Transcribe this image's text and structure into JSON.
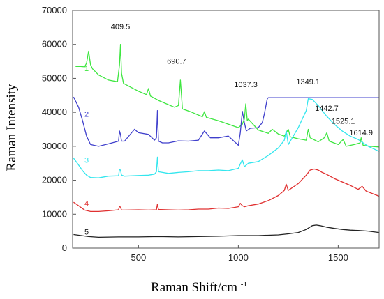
{
  "chart_data": {
    "type": "line",
    "title": "",
    "xlabel": "Raman Shift/cm",
    "xlabel_superscript": "-1",
    "ylabel": "Raman Intensity",
    "xlim": [
      170,
      1705
    ],
    "ylim": [
      0,
      70000
    ],
    "x_ticks": [
      500,
      1000,
      1500
    ],
    "y_ticks": [
      0,
      10000,
      20000,
      30000,
      40000,
      50000,
      60000,
      70000
    ],
    "x_tick_labels": [
      "500",
      "1000",
      "1500"
    ],
    "y_tick_labels": [
      "0",
      "10000",
      "20000",
      "30000",
      "40000",
      "50000",
      "60000",
      "70000"
    ],
    "grid": false,
    "peak_labels": [
      {
        "text": "409.5",
        "x": 409.5,
        "y": 64500
      },
      {
        "text": "690.7",
        "x": 690.7,
        "y": 54300
      },
      {
        "text": "1037.3",
        "x": 1037.3,
        "y": 47400
      },
      {
        "text": "1349.1",
        "x": 1349.1,
        "y": 48200
      },
      {
        "text": "1442.7",
        "x": 1442.7,
        "y": 40400
      },
      {
        "text": "1525.1",
        "x": 1525.1,
        "y": 36600
      },
      {
        "text": "1614.9",
        "x": 1614.9,
        "y": 33300
      }
    ],
    "series": [
      {
        "name": "1",
        "label_at": {
          "x": 240,
          "y": 53000
        },
        "color": "#3ee640",
        "x": [
          185,
          210,
          230,
          240,
          250,
          260,
          270,
          300,
          350,
          395,
          405,
          410,
          415,
          425,
          500,
          540,
          550,
          560,
          600,
          680,
          700,
          710,
          720,
          760,
          820,
          830,
          840,
          900,
          1000,
          1020,
          1030,
          1037,
          1045,
          1050,
          1100,
          1150,
          1170,
          1200,
          1230,
          1250,
          1260,
          1300,
          1340,
          1350,
          1360,
          1400,
          1430,
          1443,
          1455,
          1500,
          1525,
          1540,
          1580,
          1610,
          1615,
          1625,
          1660,
          1705
        ],
        "y": [
          53500,
          53500,
          53400,
          54500,
          58000,
          54000,
          52800,
          51000,
          49500,
          49000,
          54000,
          60000,
          51500,
          48500,
          46200,
          45200,
          47000,
          44800,
          43500,
          41500,
          42000,
          49500,
          41000,
          40200,
          38700,
          40200,
          38500,
          37500,
          35500,
          36500,
          38000,
          42500,
          37500,
          38000,
          34800,
          33800,
          35000,
          33600,
          33000,
          35000,
          32800,
          32200,
          31800,
          35000,
          32500,
          31300,
          32500,
          34000,
          31500,
          30500,
          32000,
          30000,
          30500,
          31000,
          32500,
          30300,
          30000,
          29800
        ]
      },
      {
        "name": "2",
        "label_at": {
          "x": 240,
          "y": 39500
        },
        "color": "#4040cc",
        "x": [
          175,
          200,
          220,
          240,
          260,
          300,
          350,
          400,
          405,
          410,
          415,
          430,
          480,
          500,
          550,
          580,
          590,
          595,
          600,
          620,
          650,
          700,
          750,
          800,
          830,
          860,
          900,
          950,
          1000,
          1010,
          1020,
          1030,
          1040,
          1060,
          1100,
          1120,
          1130,
          1140,
          1145,
          1150,
          1200,
          1300,
          1400,
          1500,
          1600,
          1705
        ],
        "y": [
          44500,
          41500,
          37500,
          33000,
          30500,
          30000,
          30700,
          31500,
          34500,
          33500,
          31500,
          31500,
          35000,
          34000,
          33500,
          31800,
          32500,
          40500,
          31500,
          31000,
          31000,
          31600,
          31500,
          31800,
          34500,
          32500,
          32500,
          33000,
          30300,
          34000,
          40300,
          37000,
          34500,
          35300,
          35500,
          37000,
          39500,
          42500,
          44000,
          44300,
          44300,
          44300,
          44300,
          44300,
          44300,
          44300
        ]
      },
      {
        "name": "3",
        "label_at": {
          "x": 240,
          "y": 26000
        },
        "color": "#33e6ee",
        "x": [
          175,
          200,
          220,
          240,
          260,
          300,
          350,
          400,
          405,
          410,
          415,
          430,
          500,
          550,
          580,
          590,
          595,
          600,
          650,
          700,
          750,
          800,
          850,
          900,
          950,
          1000,
          1010,
          1020,
          1030,
          1050,
          1100,
          1150,
          1200,
          1230,
          1240,
          1250,
          1300,
          1340,
          1350,
          1370,
          1400,
          1440,
          1480,
          1520,
          1560,
          1600,
          1650,
          1705
        ],
        "y": [
          26500,
          24500,
          22800,
          21500,
          20800,
          20700,
          21200,
          21300,
          23200,
          23000,
          21500,
          21200,
          21400,
          21500,
          21800,
          22500,
          26800,
          22500,
          22000,
          22300,
          22500,
          22800,
          22800,
          23000,
          22800,
          23500,
          24800,
          26000,
          24000,
          25000,
          25500,
          27300,
          29500,
          31800,
          34500,
          30500,
          35500,
          40500,
          44000,
          43800,
          42000,
          39000,
          36500,
          34500,
          33000,
          32000,
          30000,
          28500
        ]
      },
      {
        "name": "4",
        "label_at": {
          "x": 240,
          "y": 13200
        },
        "color": "#e03030",
        "x": [
          175,
          200,
          230,
          260,
          300,
          350,
          400,
          405,
          410,
          415,
          430,
          500,
          550,
          590,
          595,
          600,
          650,
          700,
          750,
          800,
          850,
          900,
          950,
          1000,
          1010,
          1020,
          1030,
          1050,
          1100,
          1150,
          1200,
          1230,
          1240,
          1250,
          1300,
          1340,
          1360,
          1380,
          1400,
          1420,
          1440,
          1480,
          1520,
          1560,
          1600,
          1620,
          1640,
          1705
        ],
        "y": [
          13500,
          12500,
          11200,
          10800,
          10800,
          11000,
          11300,
          12300,
          12100,
          11200,
          11200,
          11300,
          11200,
          11300,
          13000,
          11400,
          11300,
          11200,
          11300,
          11500,
          11500,
          11800,
          11700,
          12200,
          13200,
          12500,
          12200,
          12500,
          13000,
          14000,
          15500,
          17000,
          18800,
          17000,
          19000,
          21500,
          23000,
          23300,
          23000,
          22300,
          21800,
          20500,
          19500,
          18500,
          17300,
          18200,
          16800,
          15300
        ]
      },
      {
        "name": "5",
        "label_at": {
          "x": 240,
          "y": 4800
        },
        "color": "#222222",
        "x": [
          175,
          250,
          300,
          400,
          500,
          600,
          700,
          800,
          900,
          1000,
          1100,
          1150,
          1200,
          1250,
          1300,
          1340,
          1370,
          1390,
          1410,
          1440,
          1480,
          1520,
          1560,
          1600,
          1650,
          1705
        ],
        "y": [
          4000,
          3400,
          3200,
          3300,
          3300,
          3400,
          3300,
          3400,
          3500,
          3700,
          3700,
          3800,
          3900,
          4200,
          4600,
          5500,
          6600,
          6800,
          6600,
          6200,
          5800,
          5500,
          5300,
          5200,
          5000,
          4600
        ]
      }
    ]
  }
}
